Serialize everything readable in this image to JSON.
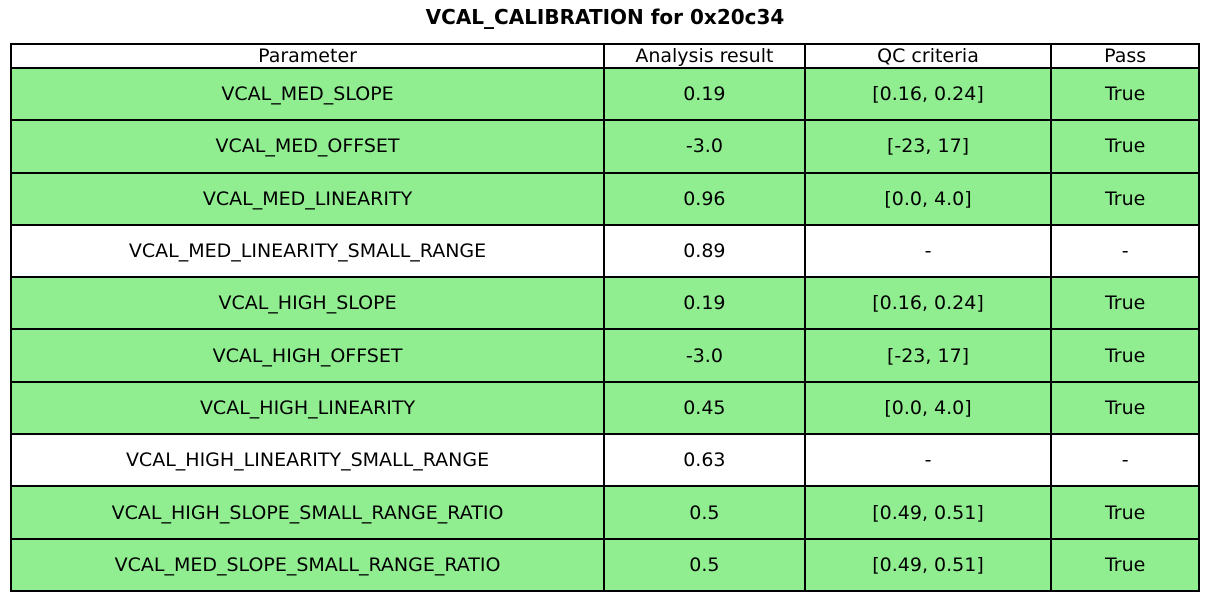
{
  "chart_data": {
    "type": "table",
    "title": "VCAL_CALIBRATION for 0x20c34",
    "columns": [
      "Parameter",
      "Analysis result",
      "QC criteria",
      "Pass"
    ],
    "rows": [
      [
        "VCAL_MED_SLOPE",
        "0.19",
        "[0.16, 0.24]",
        "True"
      ],
      [
        "VCAL_MED_OFFSET",
        "-3.0",
        "[-23, 17]",
        "True"
      ],
      [
        "VCAL_MED_LINEARITY",
        "0.96",
        "[0.0, 4.0]",
        "True"
      ],
      [
        "VCAL_MED_LINEARITY_SMALL_RANGE",
        "0.89",
        "-",
        "-"
      ],
      [
        "VCAL_HIGH_SLOPE",
        "0.19",
        "[0.16, 0.24]",
        "True"
      ],
      [
        "VCAL_HIGH_OFFSET",
        "-3.0",
        "[-23, 17]",
        "True"
      ],
      [
        "VCAL_HIGH_LINEARITY",
        "0.45",
        "[0.0, 4.0]",
        "True"
      ],
      [
        "VCAL_HIGH_LINEARITY_SMALL_RANGE",
        "0.63",
        "-",
        "-"
      ],
      [
        "VCAL_HIGH_SLOPE_SMALL_RANGE_RATIO",
        "0.5",
        "[0.49, 0.51]",
        "True"
      ],
      [
        "VCAL_MED_SLOPE_SMALL_RANGE_RATIO",
        "0.5",
        "[0.49, 0.51]",
        "True"
      ]
    ],
    "row_highlight": [
      true,
      true,
      true,
      false,
      true,
      true,
      true,
      false,
      true,
      true
    ],
    "layout_hints": {
      "header_bg": "#ffffff",
      "grid": "on",
      "title_position": "top-center"
    },
    "colors": {
      "pass_row_bg": "#90EE90",
      "neutral_row_bg": "#ffffff",
      "border": "#000000",
      "text": "#000000"
    }
  }
}
